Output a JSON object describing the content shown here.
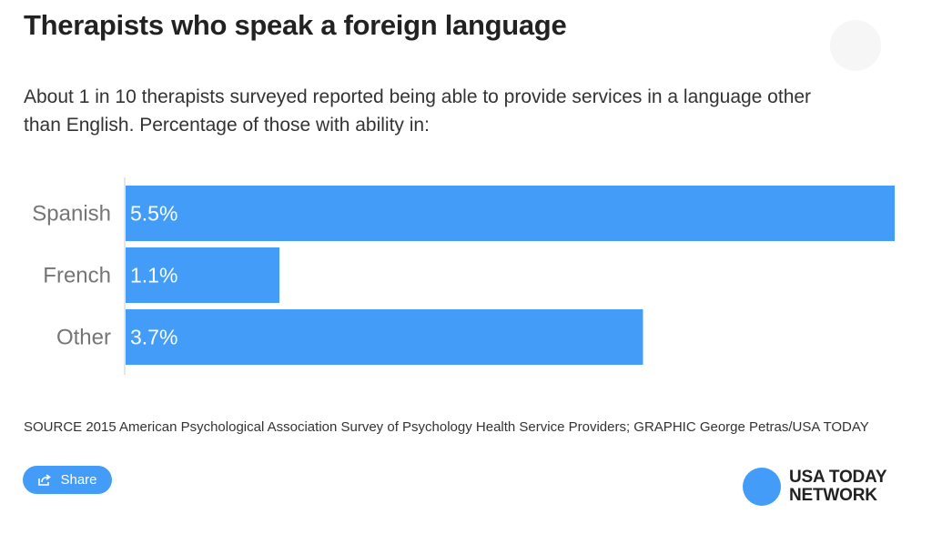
{
  "title": "Therapists who speak a foreign language",
  "subtitle": "About 1 in 10 therapists surveyed reported being able to provide services in a language other than English. Percentage of those with ability in:",
  "chart_data": {
    "type": "bar",
    "orientation": "horizontal",
    "categories": [
      "Spanish",
      "French",
      "Other"
    ],
    "values": [
      5.5,
      1.1,
      3.7
    ],
    "value_labels": [
      "5.5%",
      "1.1%",
      "3.7%"
    ],
    "title": "Therapists who speak a foreign language",
    "xlabel": "",
    "ylabel": "",
    "xlim": [
      0,
      5.5
    ],
    "grid": false,
    "bar_color": "#429cf8"
  },
  "source": "SOURCE 2015 American Psychological Association Survey of Psychology Health Service Providers; GRAPHIC George Petras/USA TODAY",
  "share": {
    "label": "Share",
    "icon": "share-icon"
  },
  "logo": {
    "line1": "USA TODAY",
    "line2": "NETWORK",
    "color": "#429cf8"
  }
}
